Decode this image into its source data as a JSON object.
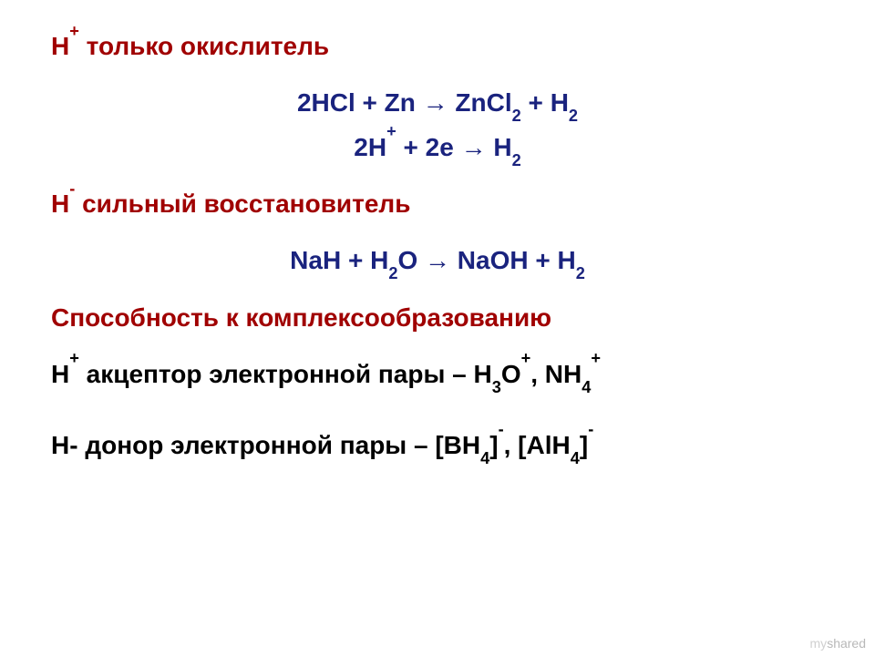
{
  "colors": {
    "red": "#a00000",
    "navy": "#1a237e",
    "black": "#000000",
    "background": "#ffffff",
    "watermark_light": "#d0d0d0",
    "watermark_dark": "#b8b8b8"
  },
  "typography": {
    "font_family": "Arial",
    "font_size_pt": 21,
    "font_weight": "bold"
  },
  "heading1": {
    "pre": "H",
    "sup": "+",
    "post": " только окислитель"
  },
  "eq1": {
    "lhs": "2HCl + Zn ",
    "arrow": "→",
    "rhs_a": " ZnCl",
    "rhs_a_sub": "2",
    "rhs_b": "  + H",
    "rhs_b_sub": "2"
  },
  "eq2": {
    "a": "2H",
    "a_sup": "+",
    "b": "  + 2e ",
    "arrow": "→",
    "c": " H",
    "c_sub": "2"
  },
  "heading2": {
    "pre": "H",
    "sup": "-",
    "post": " сильный восстановитель"
  },
  "eq3": {
    "a": "NaH + H",
    "a_sub": "2",
    "b": "O ",
    "arrow": "→",
    "c": " NaOH + H",
    "c_sub": "2"
  },
  "heading3": "Способность к комплексообразованию",
  "line_acceptor": {
    "a": "H",
    "a_sup": "+",
    "b": " акцептор электронной пары – H",
    "b_sub": "3",
    "c": "O",
    "c_sup": "+",
    "d": ", NH",
    "d_sub": "4",
    "d_sup": "+"
  },
  "line_donor": {
    "a": "H- донор электронной пары – [BH",
    "a_sub": "4",
    "b": "]",
    "b_sup": "-",
    "c": ", [AlH",
    "c_sub": "4",
    "d": "]",
    "d_sup": "-"
  },
  "watermark": {
    "my": "my",
    "shared": "shared"
  }
}
